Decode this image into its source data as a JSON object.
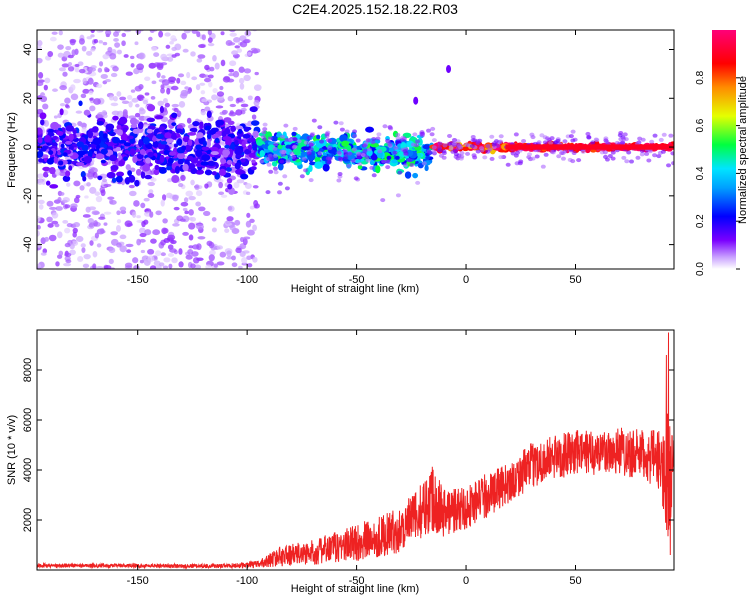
{
  "title": "C2E4.2025.152.18.22.R03",
  "chart_data": [
    {
      "type": "heatmap",
      "xlabel": "Height of straight line (km)",
      "ylabel": "Frequency (Hz)",
      "xlim": [
        -196,
        95
      ],
      "ylim": [
        -50,
        48
      ],
      "xticks": [
        -150,
        -100,
        -50,
        0,
        50
      ],
      "yticks": [
        -40,
        -20,
        0,
        20,
        40
      ],
      "colorbar": {
        "label": "Normalized spectral amplitude",
        "range": [
          0,
          1
        ],
        "ticks": [
          "0.0",
          "0.2",
          "0.4",
          "0.6",
          "0.8"
        ],
        "colormap": [
          "#ffffff",
          "#7a00ff",
          "#0000ff",
          "#00e5ff",
          "#00ff40",
          "#e5ff00",
          "#ff8c00",
          "#ff0000",
          "#ff0078"
        ]
      },
      "bands": [
        {
          "x": [
            -196,
            -95
          ],
          "center_hz": 0,
          "halfwidth_hz": 8,
          "amplitude": 0.15,
          "noise_spread_hz": 50
        },
        {
          "x": [
            -95,
            -15
          ],
          "center_hz": -1,
          "halfwidth_hz": 4,
          "amplitude": 0.4
        },
        {
          "x": [
            -15,
            95
          ],
          "center_hz": 0,
          "halfwidth_hz": 1,
          "amplitude": 0.95
        }
      ],
      "features": [
        {
          "x": -8,
          "y_hz": 32
        },
        {
          "x": -23,
          "y_hz": 19
        }
      ]
    },
    {
      "type": "line",
      "xlabel": "Height of straight line (km)",
      "ylabel": "SNR (10 * v/v)",
      "xlim": [
        -196,
        95
      ],
      "ylim": [
        0,
        9600
      ],
      "xticks": [
        -150,
        -100,
        -50,
        0,
        50
      ],
      "yticks": [
        2000,
        4000,
        6000,
        8000
      ],
      "color": "#ee2222",
      "envelope": {
        "x": [
          -196,
          -150,
          -110,
          -95,
          -85,
          -70,
          -55,
          -45,
          -30,
          -20,
          -15,
          -10,
          0,
          10,
          20,
          30,
          40,
          50,
          60,
          70,
          80,
          88,
          92,
          95
        ],
        "y": [
          180,
          170,
          160,
          220,
          550,
          700,
          1000,
          1200,
          1600,
          2400,
          3000,
          2300,
          2500,
          3000,
          3500,
          4200,
          4500,
          4700,
          4700,
          4800,
          4600,
          4400,
          3800,
          4000
        ],
        "amplitude": [
          80,
          80,
          80,
          150,
          400,
          500,
          700,
          800,
          900,
          1100,
          1500,
          1000,
          900,
          900,
          800,
          900,
          900,
          900,
          900,
          1000,
          1000,
          1200,
          2600,
          1500
        ]
      },
      "spikes": [
        {
          "x": 92.5,
          "y": 9500
        },
        {
          "x": 91.5,
          "y": 8600
        },
        {
          "x": 93.3,
          "y": 600
        }
      ]
    }
  ]
}
